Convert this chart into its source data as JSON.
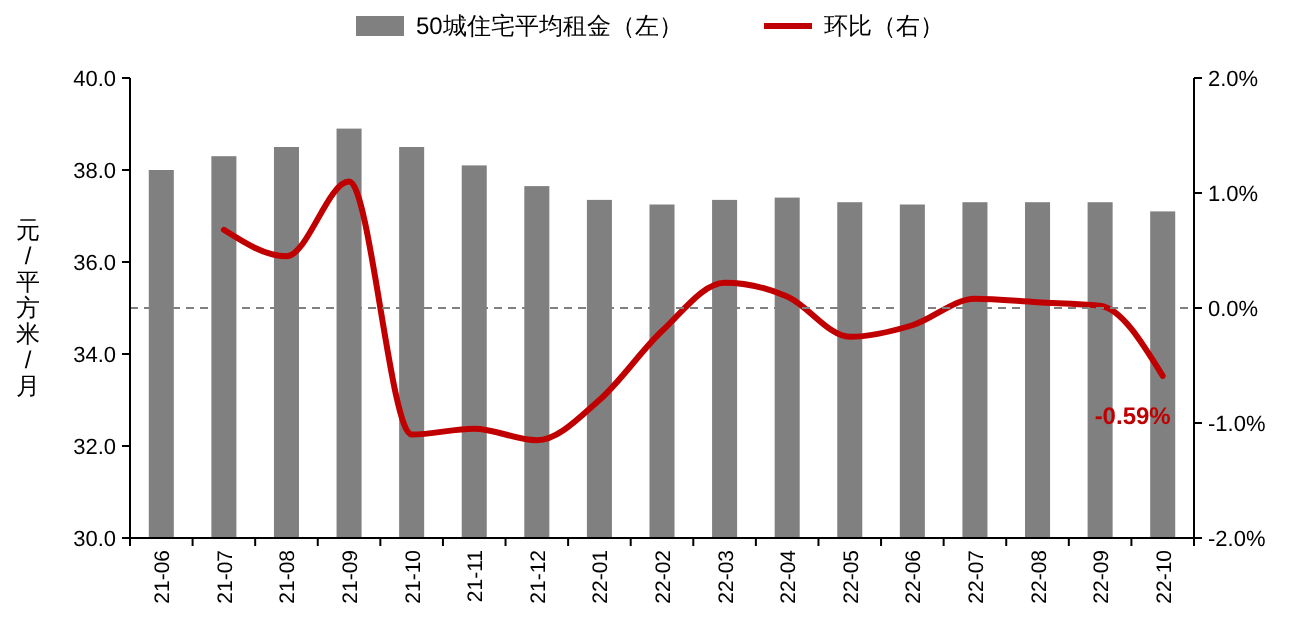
{
  "chart_data": {
    "type": "bar",
    "categories": [
      "21-06",
      "21-07",
      "21-08",
      "21-09",
      "21-10",
      "21-11",
      "21-12",
      "22-01",
      "22-02",
      "22-03",
      "22-04",
      "22-05",
      "22-06",
      "22-07",
      "22-08",
      "22-09",
      "22-10"
    ],
    "ylabel": "元/平方米/月",
    "ylim": [
      30,
      40
    ],
    "yticks": [
      {
        "value": 30,
        "label": "30.0"
      },
      {
        "value": 32,
        "label": "32.0"
      },
      {
        "value": 34,
        "label": "34.0"
      },
      {
        "value": 36,
        "label": "36.0"
      },
      {
        "value": 38,
        "label": "38.0"
      },
      {
        "value": 40,
        "label": "40.0"
      }
    ],
    "y2lim": [
      -2,
      2
    ],
    "y2ticks": [
      {
        "value": -2,
        "label": "-2.0%"
      },
      {
        "value": -1,
        "label": "-1.0%"
      },
      {
        "value": 0,
        "label": "0.0%"
      },
      {
        "value": 1,
        "label": "1.0%"
      },
      {
        "value": 2,
        "label": "2.0%"
      }
    ],
    "series": [
      {
        "name": "50城住宅平均租金（左）",
        "color": "#808080",
        "values": [
          38.0,
          38.3,
          38.5,
          38.9,
          38.5,
          38.1,
          37.65,
          37.35,
          37.25,
          37.35,
          37.4,
          37.3,
          37.25,
          37.3,
          37.3,
          37.3,
          37.1
        ]
      },
      {
        "name": "环比（右）",
        "type": "line",
        "axis": "y2",
        "color": "#c00000",
        "values": [
          null,
          0.68,
          0.45,
          1.1,
          -1.1,
          -1.05,
          -1.15,
          -0.8,
          -0.2,
          0.22,
          0.1,
          -0.25,
          -0.15,
          0.08,
          0.05,
          0.02,
          -0.59
        ]
      }
    ],
    "ref_lines": [
      {
        "axis": "y2",
        "value": 0,
        "color": "#808080",
        "line_style": "dashed"
      }
    ],
    "annotations": [
      "-0.59%"
    ],
    "legend": "top",
    "grid": false,
    "marker": "none",
    "line_style": "solid"
  }
}
